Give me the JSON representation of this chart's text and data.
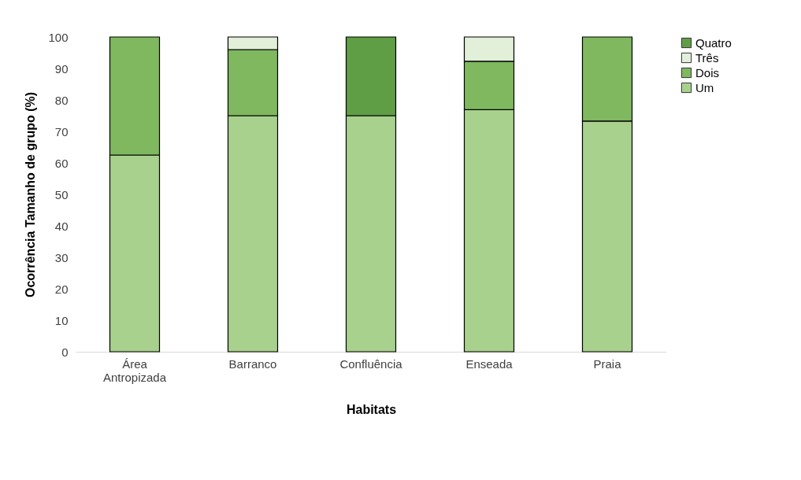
{
  "chart_data": {
    "type": "bar",
    "stacked": true,
    "xlabel": "Habitats",
    "ylabel": "Ocorrência Tamanho de grupo (%)",
    "categories": [
      "Área Antropizada",
      "Barranco",
      "Confluência",
      "Enseada",
      "Praia"
    ],
    "series": [
      {
        "name": "Um",
        "color": "#a9d18e",
        "values": [
          62.5,
          75,
          75,
          76.9,
          73.3
        ]
      },
      {
        "name": "Dois",
        "color": "#7fb85f",
        "values": [
          37.5,
          21,
          null,
          15.4,
          26.7
        ]
      },
      {
        "name": "Três",
        "color": "#e2efd9",
        "values": [
          null,
          4,
          null,
          7.7,
          null
        ]
      },
      {
        "name": "Quatro",
        "color": "#5f9e45",
        "values": [
          null,
          null,
          25,
          null,
          null
        ]
      }
    ],
    "ylim": [
      0,
      100
    ],
    "yticks": [
      0,
      10,
      20,
      30,
      40,
      50,
      60,
      70,
      80,
      90,
      100
    ],
    "grid": false,
    "legend": "right"
  }
}
